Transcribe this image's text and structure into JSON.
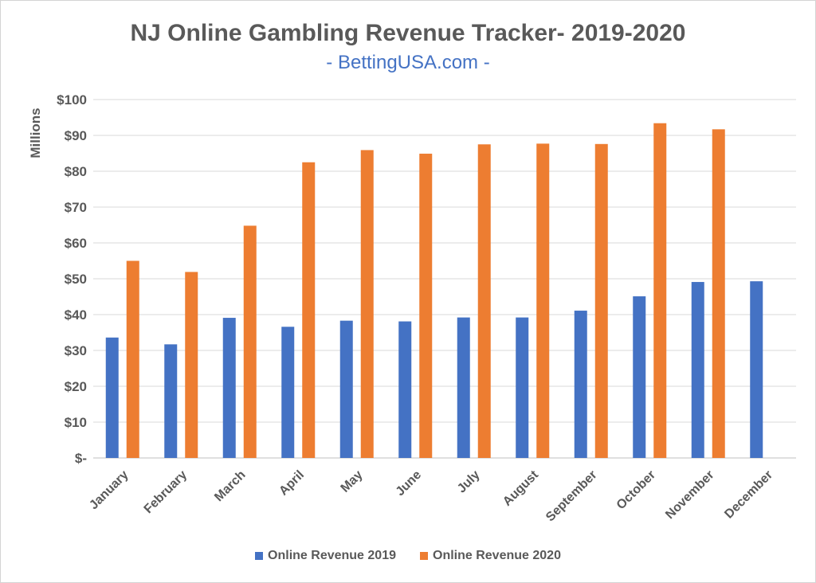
{
  "chart_data": {
    "type": "bar",
    "title": "NJ Online Gambling Revenue Tracker- 2019-2020",
    "subtitle": "- BettingUSA.com -",
    "xlabel": "",
    "ylabel": "Millions",
    "ylim": [
      0,
      100
    ],
    "yticks": [
      "$-",
      "$10",
      "$20",
      "$30",
      "$40",
      "$50",
      "$60",
      "$70",
      "$80",
      "$90",
      "$100"
    ],
    "categories": [
      "January",
      "February",
      "March",
      "April",
      "May",
      "June",
      "July",
      "August",
      "September",
      "October",
      "November",
      "December"
    ],
    "series": [
      {
        "name": "Online Revenue 2019",
        "color": "#4472c4",
        "values": [
          33.6,
          31.7,
          39.1,
          36.6,
          38.3,
          38.1,
          39.2,
          39.2,
          41.1,
          45.1,
          49.1,
          49.3
        ]
      },
      {
        "name": "Online Revenue 2020",
        "color": "#ed7d31",
        "values": [
          55.0,
          51.9,
          64.8,
          82.5,
          85.9,
          84.9,
          87.5,
          87.7,
          87.6,
          93.4,
          91.7,
          null
        ]
      }
    ],
    "grid": true,
    "legend_position": "bottom"
  }
}
